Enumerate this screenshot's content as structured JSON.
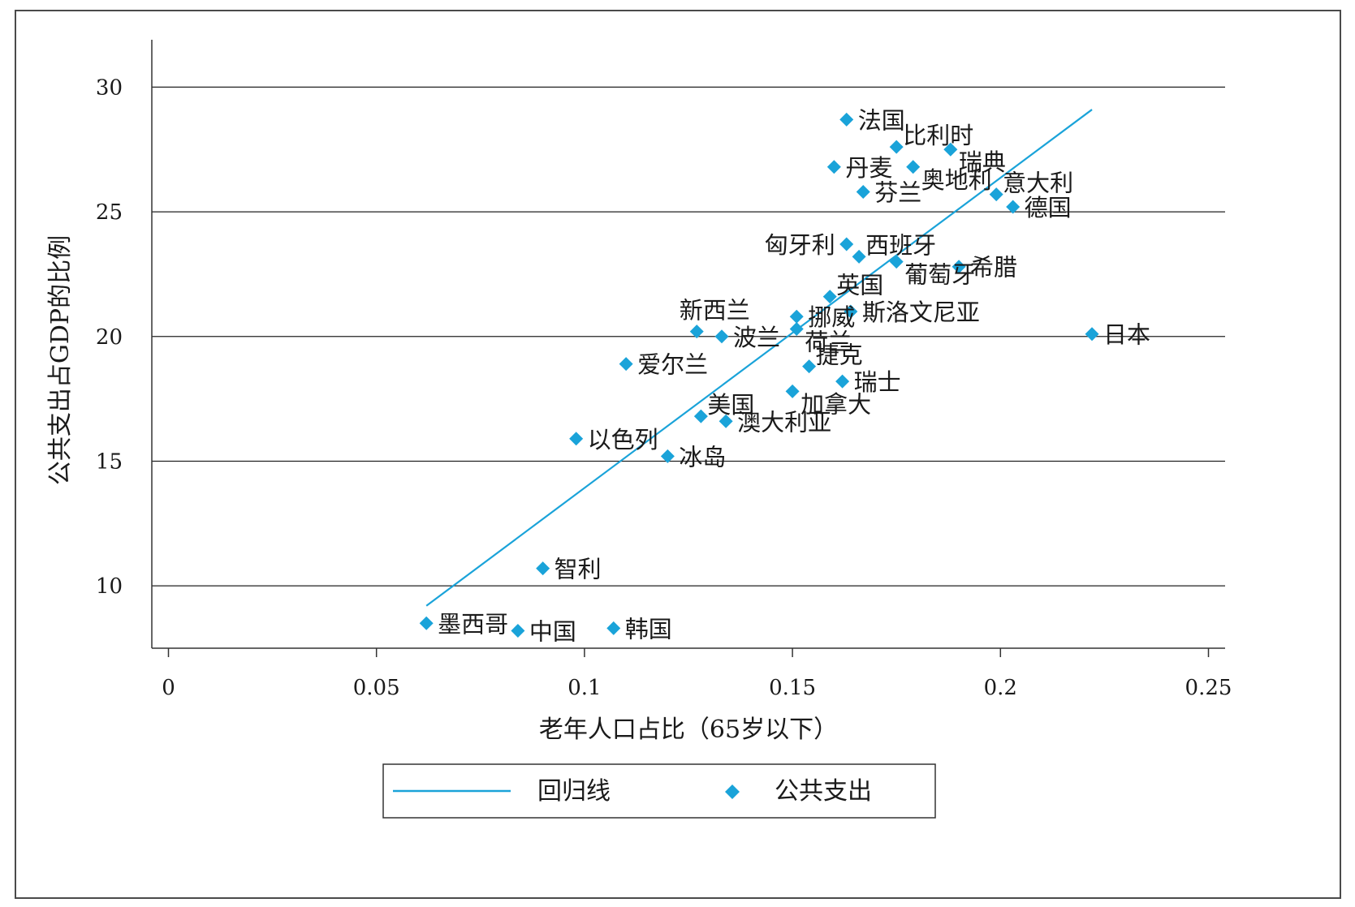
{
  "chart_data": {
    "type": "scatter",
    "xlabel": "老年人口占比（65岁以下）",
    "ylabel": "公共支出占GDP的比例",
    "xlim": [
      -0.004,
      0.254
    ],
    "ylim": [
      7.5,
      31.9
    ],
    "xticks": [
      0,
      0.05,
      0.1,
      0.15,
      0.2,
      0.25
    ],
    "xtick_labels": [
      "0",
      "0.05",
      "0.1",
      "0.15",
      "0.2",
      "0.25"
    ],
    "yticks": [
      10,
      15,
      20,
      25,
      30
    ],
    "ytick_labels": [
      "10",
      "15",
      "20",
      "25",
      "30"
    ],
    "grid": "horizontal",
    "colors": {
      "series": "#1aa3d9",
      "line": "#1aa3d9",
      "grid": "#222222",
      "axis": "#333333"
    },
    "legend": {
      "position": "bottom-center",
      "entries": [
        {
          "label": "回归线",
          "symbol": "line"
        },
        {
          "label": "公共支出",
          "symbol": "diamond"
        }
      ]
    },
    "series": [
      {
        "name": "公共支出",
        "marker": "diamond",
        "points": [
          {
            "label": "法国",
            "x": 0.163,
            "y": 28.7,
            "dir": "right"
          },
          {
            "label": "比利时",
            "x": 0.175,
            "y": 27.6,
            "dir": "upright"
          },
          {
            "label": "瑞典",
            "x": 0.188,
            "y": 27.5,
            "dir": "downright"
          },
          {
            "label": "丹麦",
            "x": 0.16,
            "y": 26.8,
            "dir": "right"
          },
          {
            "label": "奥地利",
            "x": 0.179,
            "y": 26.8,
            "dir": "downright"
          },
          {
            "label": "芬兰",
            "x": 0.167,
            "y": 25.8,
            "dir": "right"
          },
          {
            "label": "意大利",
            "x": 0.199,
            "y": 25.7,
            "dir": "upright"
          },
          {
            "label": "德国",
            "x": 0.203,
            "y": 25.2,
            "dir": "right"
          },
          {
            "label": "匈牙利",
            "x": 0.163,
            "y": 23.7,
            "dir": "left"
          },
          {
            "label": "西班牙",
            "x": 0.166,
            "y": 23.2,
            "dir": "upright"
          },
          {
            "label": "葡萄牙",
            "x": 0.175,
            "y": 23.0,
            "dir": "downright"
          },
          {
            "label": "希腊",
            "x": 0.19,
            "y": 22.8,
            "dir": "right"
          },
          {
            "label": "英国",
            "x": 0.159,
            "y": 21.6,
            "dir": "upright"
          },
          {
            "label": "斯洛文尼亚",
            "x": 0.164,
            "y": 21.0,
            "dir": "right"
          },
          {
            "label": "挪威",
            "x": 0.151,
            "y": 20.8,
            "dir": "right"
          },
          {
            "label": "新西兰",
            "x": 0.127,
            "y": 20.2,
            "dir": "up"
          },
          {
            "label": "波兰",
            "x": 0.133,
            "y": 20.0,
            "dir": "right"
          },
          {
            "label": "荷兰",
            "x": 0.151,
            "y": 20.3,
            "dir": "downright"
          },
          {
            "label": "日本",
            "x": 0.222,
            "y": 20.1,
            "dir": "right"
          },
          {
            "label": "爱尔兰",
            "x": 0.11,
            "y": 18.9,
            "dir": "right"
          },
          {
            "label": "捷克",
            "x": 0.154,
            "y": 18.8,
            "dir": "upright"
          },
          {
            "label": "瑞士",
            "x": 0.162,
            "y": 18.2,
            "dir": "right"
          },
          {
            "label": "加拿大",
            "x": 0.15,
            "y": 17.8,
            "dir": "downright"
          },
          {
            "label": "美国",
            "x": 0.128,
            "y": 16.8,
            "dir": "upright"
          },
          {
            "label": "澳大利亚",
            "x": 0.134,
            "y": 16.6,
            "dir": "right"
          },
          {
            "label": "以色列",
            "x": 0.098,
            "y": 15.9,
            "dir": "right"
          },
          {
            "label": "冰岛",
            "x": 0.12,
            "y": 15.2,
            "dir": "right"
          },
          {
            "label": "智利",
            "x": 0.09,
            "y": 10.7,
            "dir": "right"
          },
          {
            "label": "墨西哥",
            "x": 0.062,
            "y": 8.5,
            "dir": "right"
          },
          {
            "label": "中国",
            "x": 0.084,
            "y": 8.2,
            "dir": "right"
          },
          {
            "label": "韩国",
            "x": 0.107,
            "y": 8.3,
            "dir": "right"
          }
        ]
      },
      {
        "name": "回归线",
        "type": "line",
        "points": [
          {
            "x": 0.062,
            "y": 9.2
          },
          {
            "x": 0.222,
            "y": 29.1
          }
        ]
      }
    ]
  }
}
